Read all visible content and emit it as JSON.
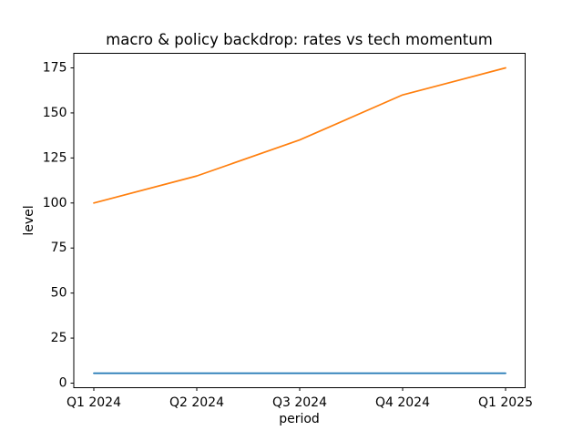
{
  "chart_data": {
    "type": "line",
    "title": "macro & policy backdrop: rates vs tech momentum",
    "xlabel": "period",
    "ylabel": "level",
    "categories": [
      "Q1 2024",
      "Q2 2024",
      "Q3 2024",
      "Q4 2024",
      "Q1 2025"
    ],
    "series": [
      {
        "name": "rates",
        "color": "#1f77b4",
        "values": [
          5.5,
          5.5,
          5.5,
          5.5,
          5.5
        ]
      },
      {
        "name": "tech momentum",
        "color": "#ff7f0e",
        "values": [
          100,
          115,
          135,
          160,
          175
        ]
      }
    ],
    "yticks": [
      0,
      25,
      50,
      75,
      100,
      125,
      150,
      175
    ],
    "ylim": [
      -3,
      183.5
    ],
    "grid": false,
    "legend_position": "none",
    "background_color": "#ffffff",
    "spine_color": "#000000"
  }
}
